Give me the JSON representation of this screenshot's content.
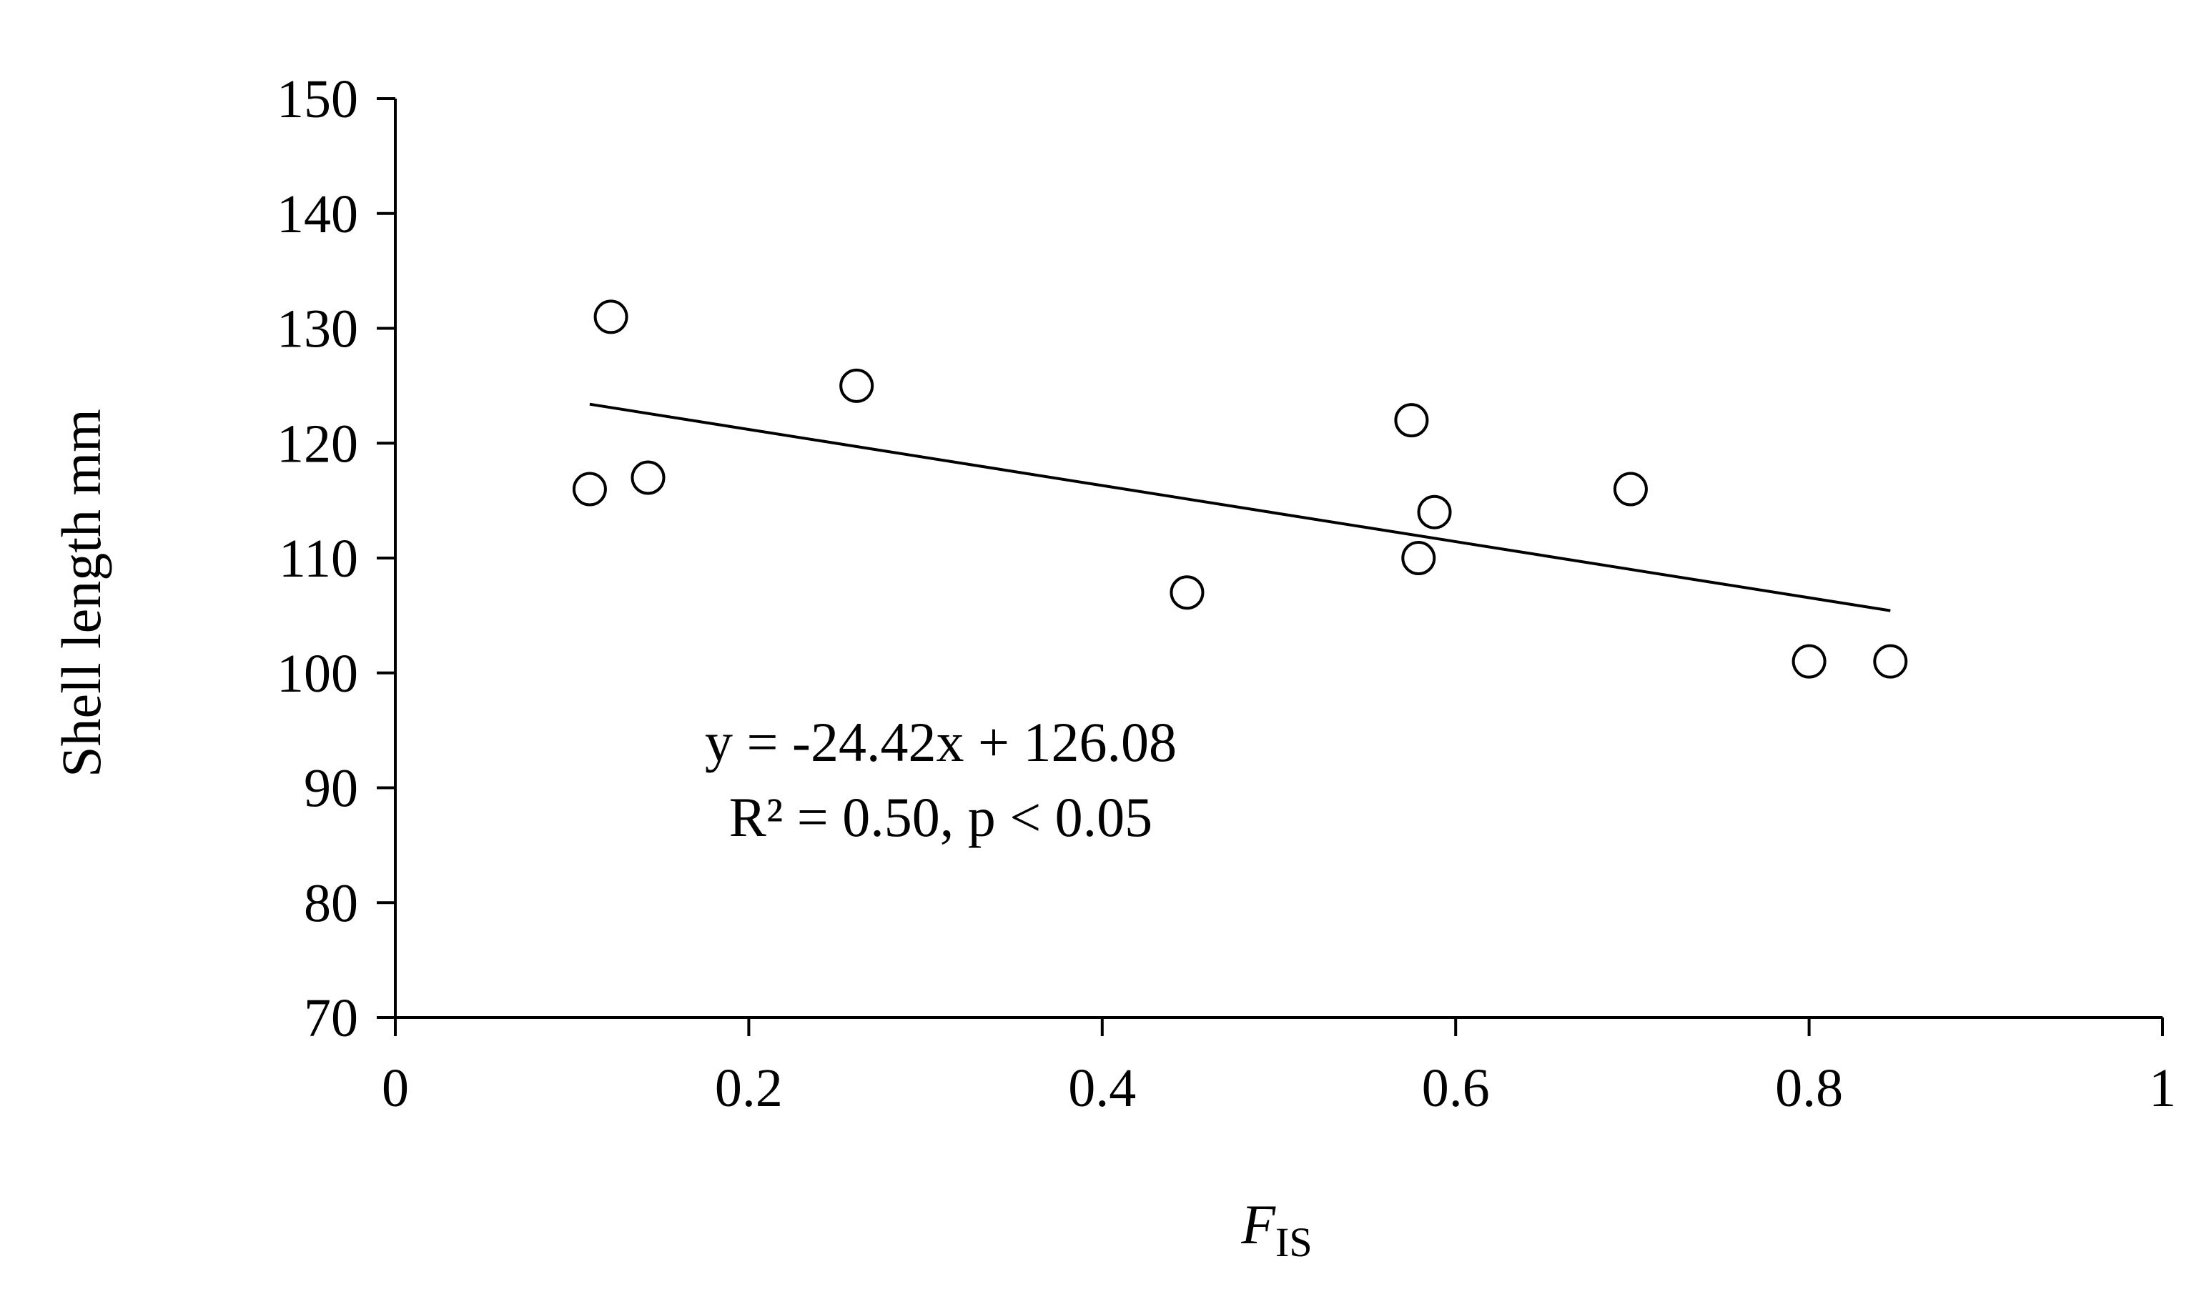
{
  "chart_data": {
    "type": "scatter",
    "xlabel": "F",
    "xlabel_subscript": "IS",
    "ylabel": "Shell length mm",
    "xlim": [
      0,
      1
    ],
    "ylim": [
      70,
      150
    ],
    "x_ticks": [
      "0",
      "0.2",
      "0.4",
      "0.6",
      "0.8",
      "1"
    ],
    "y_ticks": [
      "70",
      "80",
      "90",
      "100",
      "110",
      "120",
      "130",
      "140",
      "150"
    ],
    "grid": false,
    "points": [
      {
        "x": 0.11,
        "y": 116
      },
      {
        "x": 0.122,
        "y": 131
      },
      {
        "x": 0.143,
        "y": 117
      },
      {
        "x": 0.261,
        "y": 125
      },
      {
        "x": 0.448,
        "y": 107
      },
      {
        "x": 0.575,
        "y": 122
      },
      {
        "x": 0.579,
        "y": 110
      },
      {
        "x": 0.588,
        "y": 114
      },
      {
        "x": 0.699,
        "y": 116
      },
      {
        "x": 0.8,
        "y": 101
      },
      {
        "x": 0.846,
        "y": 101
      }
    ],
    "trendline": {
      "slope": -24.42,
      "intercept": 126.08,
      "x_start": 0.11,
      "x_end": 0.846
    },
    "annotations": {
      "equation": "y = -24.42x + 126.08",
      "stats": "R² = 0.50, p < 0.05"
    }
  }
}
